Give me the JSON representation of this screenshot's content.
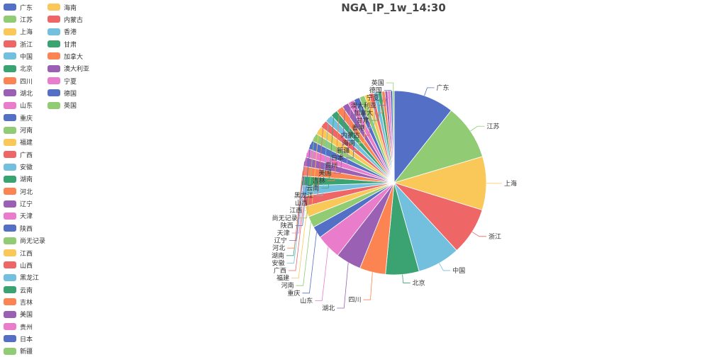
{
  "chart_data": {
    "type": "pie",
    "title": "NGA_IP_1w_14:30",
    "legend_placement": "top-left",
    "slices": [
      {
        "name": "广东",
        "value": 112,
        "color": "#5470c6"
      },
      {
        "name": "江苏",
        "value": 103,
        "color": "#91cc75"
      },
      {
        "name": "上海",
        "value": 99,
        "color": "#fac858"
      },
      {
        "name": "浙江",
        "value": 88,
        "color": "#ee6666"
      },
      {
        "name": "中国",
        "value": 79,
        "color": "#73c0de"
      },
      {
        "name": "北京",
        "value": 62,
        "color": "#3ba272"
      },
      {
        "name": "四川",
        "value": 48,
        "color": "#fc8452"
      },
      {
        "name": "湖北",
        "value": 47,
        "color": "#9a60b4"
      },
      {
        "name": "山东",
        "value": 46,
        "color": "#ea7ccc"
      },
      {
        "name": "重庆",
        "value": 22,
        "color": "#5470c6"
      },
      {
        "name": "河南",
        "value": 21,
        "color": "#91cc75"
      },
      {
        "name": "福建",
        "value": 20,
        "color": "#fac858"
      },
      {
        "name": "广西",
        "value": 19,
        "color": "#ee6666"
      },
      {
        "name": "安徽",
        "value": 19,
        "color": "#73c0de"
      },
      {
        "name": "湖南",
        "value": 18,
        "color": "#3ba272"
      },
      {
        "name": "河北",
        "value": 18,
        "color": "#fc8452"
      },
      {
        "name": "辽宁",
        "value": 17,
        "color": "#9a60b4"
      },
      {
        "name": "天津",
        "value": 16,
        "color": "#ea7ccc"
      },
      {
        "name": "陕西",
        "value": 16,
        "color": "#5470c6"
      },
      {
        "name": "尚无记录",
        "value": 15,
        "color": "#91cc75"
      },
      {
        "name": "江西",
        "value": 15,
        "color": "#fac858"
      },
      {
        "name": "山西",
        "value": 14,
        "color": "#ee6666"
      },
      {
        "name": "黑龙江",
        "value": 14,
        "color": "#73c0de"
      },
      {
        "name": "云南",
        "value": 13,
        "color": "#3ba272"
      },
      {
        "name": "吉林",
        "value": 13,
        "color": "#fc8452"
      },
      {
        "name": "美国",
        "value": 12,
        "color": "#9a60b4"
      },
      {
        "name": "贵州",
        "value": 12,
        "color": "#ea7ccc"
      },
      {
        "name": "日本",
        "value": 11,
        "color": "#5470c6"
      },
      {
        "name": "新疆",
        "value": 10,
        "color": "#91cc75"
      },
      {
        "name": "海南",
        "value": 9,
        "color": "#fac858"
      },
      {
        "name": "内蒙古",
        "value": 8,
        "color": "#ee6666"
      },
      {
        "name": "香港",
        "value": 8,
        "color": "#73c0de"
      },
      {
        "name": "甘肃",
        "value": 7,
        "color": "#3ba272"
      },
      {
        "name": "加拿大",
        "value": 6,
        "color": "#fc8452"
      },
      {
        "name": "澳大利亚",
        "value": 5,
        "color": "#9a60b4"
      },
      {
        "name": "宁夏",
        "value": 5,
        "color": "#ea7ccc"
      },
      {
        "name": "德国",
        "value": 4,
        "color": "#5470c6"
      },
      {
        "name": "英国",
        "value": 3,
        "color": "#91cc75"
      }
    ]
  }
}
